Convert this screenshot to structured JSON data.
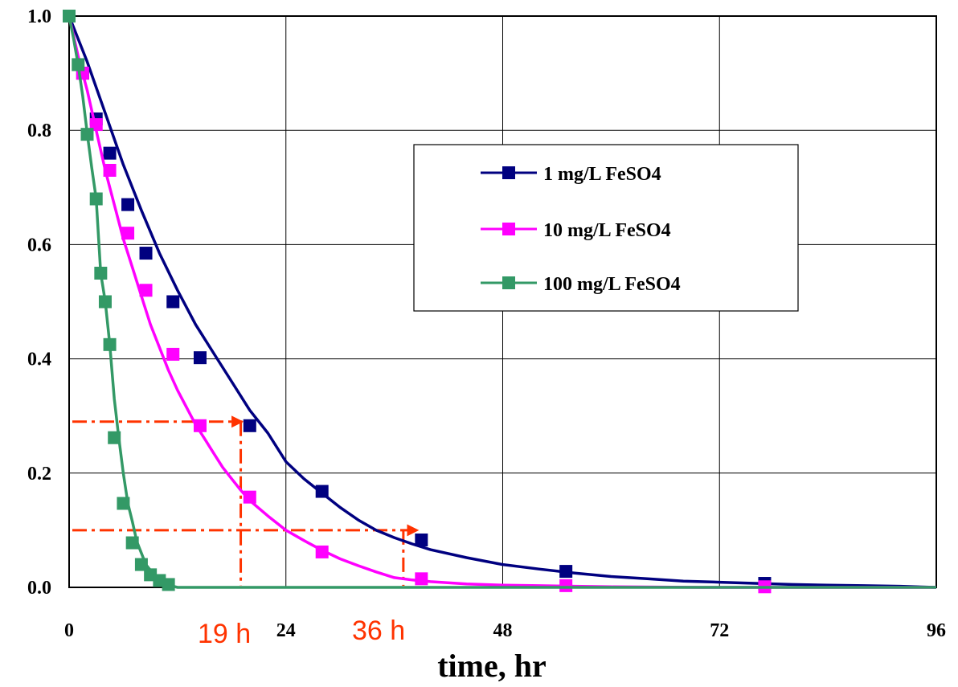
{
  "chart_data": {
    "type": "line",
    "xlabel": "time, hr",
    "ylabel": "",
    "xlim": [
      0,
      96
    ],
    "ylim": [
      0,
      1.0
    ],
    "xticks": [
      0,
      24,
      48,
      72,
      96
    ],
    "yticks": [
      0.0,
      0.2,
      0.4,
      0.6,
      0.8,
      1.0
    ],
    "xtick_labels": [
      "0",
      "24",
      "48",
      "72",
      "96"
    ],
    "ytick_labels": [
      "0.0",
      "0.2",
      "0.4",
      "0.6",
      "0.8",
      "1.0"
    ],
    "grid": true,
    "legend_position": "upper-right",
    "series": [
      {
        "name": "1 mg/L FeSO4",
        "color": "#000080",
        "marker": "square",
        "curve": [
          [
            0,
            1.0
          ],
          [
            2,
            0.92
          ],
          [
            4,
            0.83
          ],
          [
            6,
            0.74
          ],
          [
            8,
            0.66
          ],
          [
            10,
            0.585
          ],
          [
            12,
            0.52
          ],
          [
            14,
            0.46
          ],
          [
            16,
            0.41
          ],
          [
            18,
            0.36
          ],
          [
            20,
            0.31
          ],
          [
            22,
            0.27
          ],
          [
            24,
            0.22
          ],
          [
            26,
            0.19
          ],
          [
            28,
            0.165
          ],
          [
            30,
            0.14
          ],
          [
            32,
            0.118
          ],
          [
            34,
            0.1
          ],
          [
            36,
            0.087
          ],
          [
            38,
            0.076
          ],
          [
            40,
            0.066
          ],
          [
            44,
            0.052
          ],
          [
            48,
            0.04
          ],
          [
            52,
            0.032
          ],
          [
            56,
            0.025
          ],
          [
            60,
            0.019
          ],
          [
            64,
            0.015
          ],
          [
            68,
            0.011
          ],
          [
            72,
            0.009
          ],
          [
            76,
            0.007
          ],
          [
            80,
            0.005
          ],
          [
            84,
            0.004
          ],
          [
            88,
            0.003
          ],
          [
            92,
            0.002
          ],
          [
            96,
            0.0
          ]
        ],
        "points": [
          [
            0,
            1.0
          ],
          [
            1.5,
            0.9
          ],
          [
            3,
            0.82
          ],
          [
            4.5,
            0.76
          ],
          [
            6.5,
            0.67
          ],
          [
            8.5,
            0.585
          ],
          [
            11.5,
            0.5
          ],
          [
            14.5,
            0.402
          ],
          [
            20,
            0.283
          ],
          [
            28,
            0.168
          ],
          [
            39,
            0.083
          ],
          [
            55,
            0.028
          ],
          [
            77,
            0.007
          ]
        ]
      },
      {
        "name": "10 mg/L FeSO4",
        "color": "#ff00ff",
        "marker": "square",
        "curve": [
          [
            0,
            1.0
          ],
          [
            1,
            0.93
          ],
          [
            2,
            0.87
          ],
          [
            3,
            0.8
          ],
          [
            4,
            0.73
          ],
          [
            5,
            0.67
          ],
          [
            6,
            0.61
          ],
          [
            7,
            0.56
          ],
          [
            8,
            0.51
          ],
          [
            9,
            0.46
          ],
          [
            10,
            0.42
          ],
          [
            11,
            0.38
          ],
          [
            12,
            0.345
          ],
          [
            13,
            0.315
          ],
          [
            14,
            0.285
          ],
          [
            15,
            0.26
          ],
          [
            16,
            0.235
          ],
          [
            17,
            0.21
          ],
          [
            18,
            0.19
          ],
          [
            19,
            0.17
          ],
          [
            20,
            0.152
          ],
          [
            22,
            0.125
          ],
          [
            24,
            0.1
          ],
          [
            26,
            0.082
          ],
          [
            28,
            0.065
          ],
          [
            30,
            0.05
          ],
          [
            32,
            0.038
          ],
          [
            34,
            0.027
          ],
          [
            36,
            0.017
          ],
          [
            38,
            0.013
          ],
          [
            40,
            0.01
          ],
          [
            44,
            0.006
          ],
          [
            48,
            0.004
          ],
          [
            52,
            0.003
          ],
          [
            56,
            0.002
          ],
          [
            60,
            0.001
          ],
          [
            70,
            0.0
          ],
          [
            80,
            0.0
          ],
          [
            96,
            0.0
          ]
        ],
        "points": [
          [
            0,
            1.0
          ],
          [
            1.5,
            0.9
          ],
          [
            3,
            0.81
          ],
          [
            4.5,
            0.73
          ],
          [
            6.5,
            0.62
          ],
          [
            8.5,
            0.52
          ],
          [
            11.5,
            0.408
          ],
          [
            14.5,
            0.283
          ],
          [
            20,
            0.158
          ],
          [
            28,
            0.062
          ],
          [
            39,
            0.015
          ],
          [
            55,
            0.003
          ],
          [
            77,
            0.001
          ]
        ]
      },
      {
        "name": "100 mg/L FeSO4",
        "color": "#339966",
        "marker": "square",
        "curve": [
          [
            0,
            1.0
          ],
          [
            0.5,
            0.96
          ],
          [
            1,
            0.915
          ],
          [
            1.5,
            0.86
          ],
          [
            2,
            0.795
          ],
          [
            2.5,
            0.735
          ],
          [
            3,
            0.68
          ],
          [
            3.5,
            0.55
          ],
          [
            4,
            0.5
          ],
          [
            4.5,
            0.425
          ],
          [
            5,
            0.33
          ],
          [
            5.5,
            0.262
          ],
          [
            6,
            0.2
          ],
          [
            6.5,
            0.147
          ],
          [
            7,
            0.115
          ],
          [
            7.5,
            0.08
          ],
          [
            8,
            0.06
          ],
          [
            8.5,
            0.04
          ],
          [
            9,
            0.03
          ],
          [
            9.5,
            0.02
          ],
          [
            10,
            0.012
          ],
          [
            10.5,
            0.007
          ],
          [
            11,
            0.004
          ],
          [
            12,
            0.0
          ],
          [
            16,
            0.0
          ],
          [
            24,
            0.0
          ],
          [
            48,
            0.0
          ],
          [
            72,
            0.0
          ],
          [
            96,
            0.0
          ]
        ],
        "points": [
          [
            0,
            1.0
          ],
          [
            1,
            0.915
          ],
          [
            2,
            0.793
          ],
          [
            3,
            0.68
          ],
          [
            3.5,
            0.55
          ],
          [
            4,
            0.5
          ],
          [
            4.5,
            0.425
          ],
          [
            5,
            0.262
          ],
          [
            6,
            0.147
          ],
          [
            7,
            0.078
          ],
          [
            8,
            0.04
          ],
          [
            9,
            0.022
          ],
          [
            10,
            0.012
          ],
          [
            11,
            0.005
          ]
        ]
      }
    ],
    "annotations": {
      "color": "#ff3300",
      "labels": [
        "19 h",
        "36 h"
      ],
      "guides": [
        {
          "y": 0.29,
          "x": 19
        },
        {
          "y": 0.1,
          "x": 37
        }
      ]
    }
  }
}
